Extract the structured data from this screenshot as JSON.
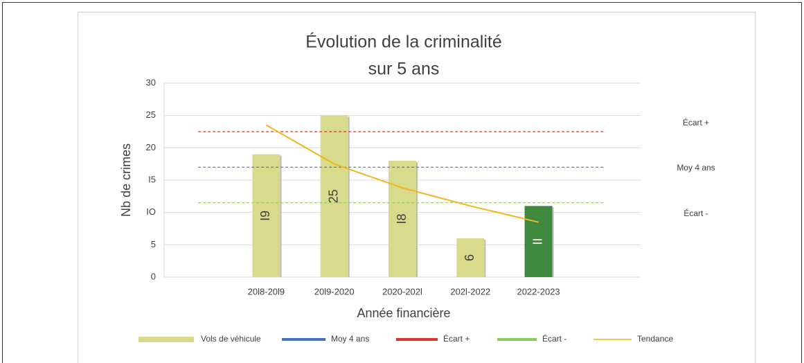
{
  "chart_data": {
    "type": "bar",
    "title": "Évolution de la criminalité",
    "subtitle": "sur 5 ans",
    "x_label": "Année financière",
    "y_label": "Nb de crimes",
    "categories": [
      null,
      "20l8-20l9",
      "20l9-2020",
      "2020-202l",
      "202l-2022",
      "2022-2023",
      null
    ],
    "ylim": [
      0,
      30
    ],
    "yticks": [
      0,
      5,
      {
        "value": 10,
        "label": "IO"
      },
      {
        "value": 15,
        "label": "I5"
      },
      20,
      25,
      30
    ],
    "grid": true,
    "series": [
      {
        "name": "Vols de véhicule",
        "type": "bar",
        "color": "#d8db8c",
        "colors": [
          null,
          "#d8db8c",
          "#d8db8c",
          "#d8db8c",
          "#d8db8c",
          "#3f8a3f",
          null
        ],
        "values": [
          null,
          19,
          25,
          18,
          6,
          11,
          null
        ],
        "value_labels": [
          null,
          "I9",
          "25",
          "I8",
          "6",
          "II",
          null
        ]
      },
      {
        "name": "Moy 4 ans",
        "type": "hline",
        "color": "#4472c4",
        "value": 17
      },
      {
        "name": "Écart +",
        "type": "hline",
        "color": "#e03030",
        "value": 22.5
      },
      {
        "name": "Écart -",
        "type": "hline",
        "color": "#8dcc5a",
        "value": 11.5
      },
      {
        "name": "Tendance",
        "type": "line",
        "color": "#f2b51c",
        "values": [
          null,
          23.5,
          17.5,
          13.8,
          11,
          8.5,
          null
        ]
      }
    ]
  }
}
